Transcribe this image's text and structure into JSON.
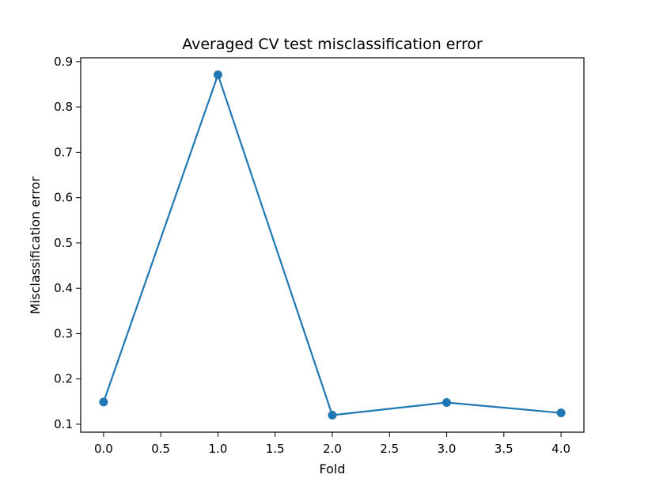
{
  "chart_data": {
    "type": "line",
    "title": "Averaged CV test misclassification error",
    "xlabel": "Fold",
    "ylabel": "Misclassification error",
    "x": [
      0,
      1,
      2,
      3,
      4
    ],
    "series": [
      {
        "values": [
          0.149,
          0.871,
          0.12,
          0.148,
          0.125
        ],
        "color": "#1f77b4",
        "marker": "circle"
      }
    ],
    "xlim": [
      -0.2,
      4.2
    ],
    "ylim": [
      0.0825,
      0.9085
    ],
    "xticks": [
      0.0,
      0.5,
      1.0,
      1.5,
      2.0,
      2.5,
      3.0,
      3.5,
      4.0
    ],
    "xtick_labels": [
      "0.0",
      "0.5",
      "1.0",
      "1.5",
      "2.0",
      "2.5",
      "3.0",
      "3.5",
      "4.0"
    ],
    "yticks": [
      0.1,
      0.2,
      0.3,
      0.4,
      0.5,
      0.6,
      0.7,
      0.8,
      0.9
    ],
    "ytick_labels": [
      "0.1",
      "0.2",
      "0.3",
      "0.4",
      "0.5",
      "0.6",
      "0.7",
      "0.8",
      "0.9"
    ],
    "grid": false,
    "legend": "none"
  }
}
